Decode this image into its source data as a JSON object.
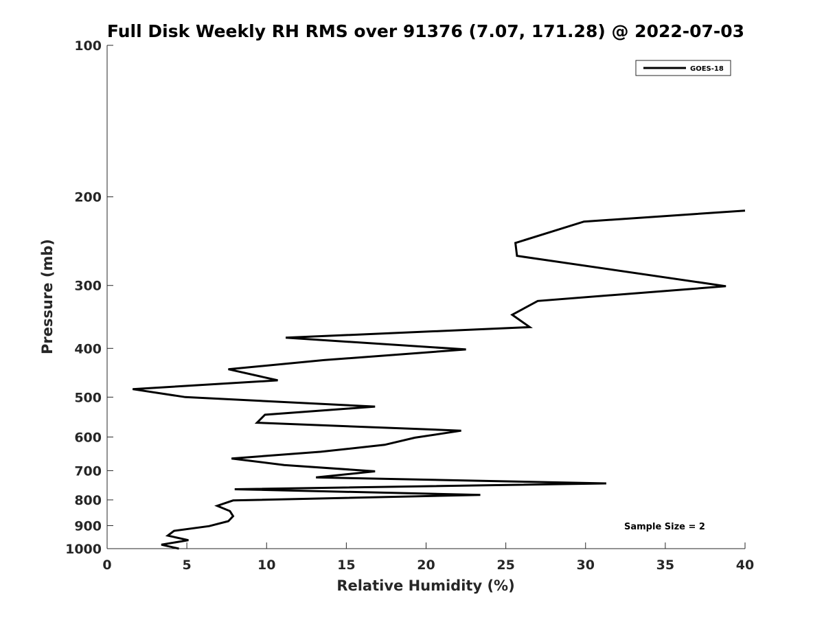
{
  "chart_data": {
    "type": "line",
    "title": "Full Disk Weekly RH RMS over 91376 (7.07, 171.28) @ 2022-07-03",
    "xlabel": "Relative Humidity (%)",
    "ylabel": "Pressure (mb)",
    "xlim": [
      0,
      40
    ],
    "ylim": [
      100,
      1000
    ],
    "yscale": "log",
    "yreversed": true,
    "grid": false,
    "legend_position": "top-right",
    "xticks": [
      0,
      5,
      10,
      15,
      20,
      25,
      30,
      35,
      40
    ],
    "xtick_labels": [
      "0",
      "5",
      "10",
      "15",
      "20",
      "25",
      "30",
      "35",
      "40"
    ],
    "yticks": [
      100,
      200,
      300,
      400,
      500,
      600,
      700,
      800,
      900,
      1000
    ],
    "ytick_labels": [
      "100",
      "200",
      "300",
      "400",
      "500",
      "600",
      "700",
      "800",
      "900",
      "1000"
    ],
    "series": [
      {
        "name": "GOES-18",
        "color": "#000000",
        "points": [
          {
            "x": 40.0,
            "p": 213
          },
          {
            "x": 29.9,
            "p": 224
          },
          {
            "x": 25.6,
            "p": 247
          },
          {
            "x": 25.7,
            "p": 262
          },
          {
            "x": 38.8,
            "p": 301
          },
          {
            "x": 27.0,
            "p": 322
          },
          {
            "x": 25.4,
            "p": 343
          },
          {
            "x": 26.5,
            "p": 363
          },
          {
            "x": 11.2,
            "p": 381
          },
          {
            "x": 22.5,
            "p": 402
          },
          {
            "x": 13.6,
            "p": 422
          },
          {
            "x": 7.6,
            "p": 440
          },
          {
            "x": 10.7,
            "p": 463
          },
          {
            "x": 1.6,
            "p": 482
          },
          {
            "x": 4.9,
            "p": 500
          },
          {
            "x": 16.8,
            "p": 522
          },
          {
            "x": 9.9,
            "p": 542
          },
          {
            "x": 9.4,
            "p": 562
          },
          {
            "x": 22.2,
            "p": 583
          },
          {
            "x": 19.3,
            "p": 602
          },
          {
            "x": 17.4,
            "p": 622
          },
          {
            "x": 13.4,
            "p": 642
          },
          {
            "x": 7.8,
            "p": 662
          },
          {
            "x": 11.1,
            "p": 682
          },
          {
            "x": 16.8,
            "p": 702
          },
          {
            "x": 13.1,
            "p": 722
          },
          {
            "x": 31.3,
            "p": 742
          },
          {
            "x": 8.0,
            "p": 762
          },
          {
            "x": 23.4,
            "p": 782
          },
          {
            "x": 7.9,
            "p": 802
          },
          {
            "x": 6.9,
            "p": 822
          },
          {
            "x": 7.7,
            "p": 842
          },
          {
            "x": 7.9,
            "p": 862
          },
          {
            "x": 7.6,
            "p": 882
          },
          {
            "x": 6.4,
            "p": 902
          },
          {
            "x": 4.2,
            "p": 922
          },
          {
            "x": 3.8,
            "p": 942
          },
          {
            "x": 5.1,
            "p": 962
          },
          {
            "x": 3.4,
            "p": 982
          },
          {
            "x": 4.5,
            "p": 1002
          }
        ]
      }
    ],
    "annotation": "Sample Size = 2"
  }
}
